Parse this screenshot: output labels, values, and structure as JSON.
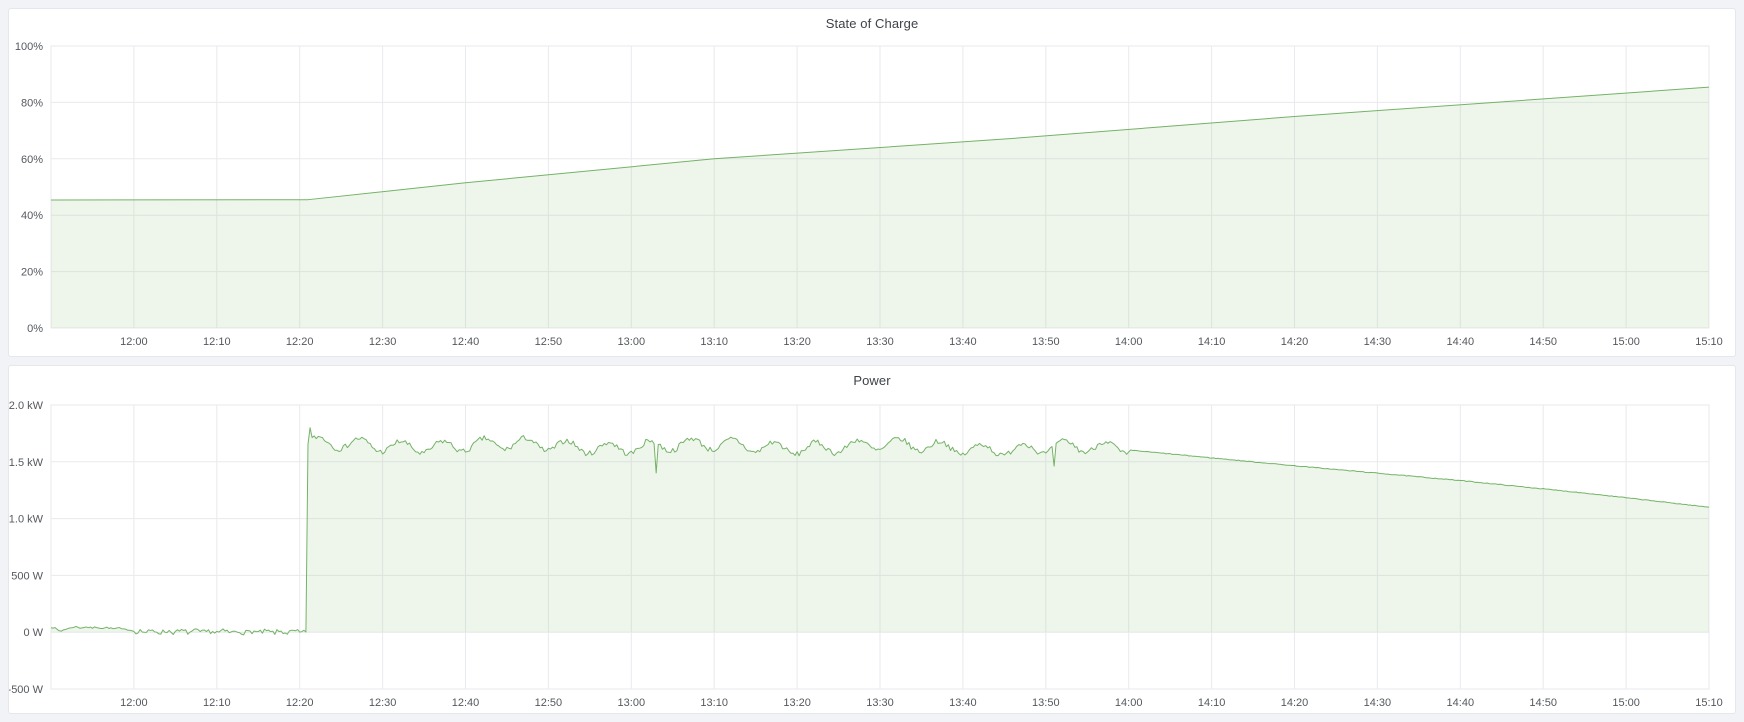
{
  "dashboard": {
    "kind": "time-series-dashboard"
  },
  "theme": {
    "page_bg": "#f1f3f7",
    "panel_bg": "#ffffff",
    "panel_border": "#e4e7ec",
    "grid_color": "#e9eaee",
    "tick_color": "#54585e",
    "title_color": "#3f4349",
    "series_color": "#74b266",
    "series_fill": "rgba(116,178,102,0.12)"
  },
  "chart_data": [
    {
      "type": "area",
      "title": "State of Charge",
      "x_start": "11:50",
      "x_end": "15:10",
      "x_minutes_total": 200,
      "x_tick_start_minute": 10,
      "x_tick_interval_minutes": 10,
      "x_tick_labels": [
        "12:00",
        "12:10",
        "12:20",
        "12:30",
        "12:40",
        "12:50",
        "13:00",
        "13:10",
        "13:20",
        "13:30",
        "13:40",
        "13:50",
        "14:00",
        "14:10",
        "14:20",
        "14:30",
        "14:40",
        "14:50",
        "15:00",
        "15:10"
      ],
      "ylim": [
        0,
        100
      ],
      "y_ticks": [
        {
          "value": 0,
          "label": "0%"
        },
        {
          "value": 20,
          "label": "20%"
        },
        {
          "value": 40,
          "label": "40%"
        },
        {
          "value": 60,
          "label": "60%"
        },
        {
          "value": 80,
          "label": "80%"
        },
        {
          "value": 100,
          "label": "100%"
        }
      ],
      "baseline": 0,
      "grid": true,
      "legend": false,
      "series": [
        {
          "name": "State of Charge (%)",
          "anchors_t_minutes_value": [
            [
              0,
              45.4
            ],
            [
              31,
              45.5
            ],
            [
              50,
              51.5
            ],
            [
              80,
              60
            ],
            [
              115,
              67
            ],
            [
              150,
              75
            ],
            [
              200,
              85.4
            ]
          ],
          "noise": 0
        }
      ]
    },
    {
      "type": "area",
      "title": "Power",
      "x_start": "11:50",
      "x_end": "15:10",
      "x_minutes_total": 200,
      "x_tick_start_minute": 10,
      "x_tick_interval_minutes": 10,
      "x_tick_labels": [
        "12:00",
        "12:10",
        "12:20",
        "12:30",
        "12:40",
        "12:50",
        "13:00",
        "13:10",
        "13:20",
        "13:30",
        "13:40",
        "13:50",
        "14:00",
        "14:10",
        "14:20",
        "14:30",
        "14:40",
        "14:50",
        "15:00",
        "15:10"
      ],
      "ylim": [
        -500,
        2000
      ],
      "y_ticks": [
        {
          "value": -500,
          "label": "-500 W"
        },
        {
          "value": 0,
          "label": "0 W"
        },
        {
          "value": 500,
          "label": "500 W"
        },
        {
          "value": 1000,
          "label": "1.0 kW"
        },
        {
          "value": 1500,
          "label": "1.5 kW"
        },
        {
          "value": 2000,
          "label": "2.0 kW"
        }
      ],
      "baseline": 0,
      "grid": true,
      "legend": false,
      "series": [
        {
          "name": "Power (W)",
          "sample_step_minutes": 0.25,
          "rng_seed": 7,
          "segments": [
            {
              "t0": 0,
              "t1": 10,
              "anchors": [
                [
                  0,
                  46
                ],
                [
                  1.2,
                  10
                ],
                [
                  2.5,
                  44
                ],
                [
                  6,
                  40
                ],
                [
                  8.5,
                  30
                ],
                [
                  10,
                  12
                ]
              ],
              "noise": 7,
              "wiggle_amp": 4,
              "wiggle_period": 1.3
            },
            {
              "t0": 10.25,
              "t1": 30.8,
              "anchors": [
                [
                  10.25,
                  6
                ],
                [
                  30.8,
                  0
                ]
              ],
              "noise": 22,
              "wiggle_amp": 6,
              "wiggle_period": 1.7
            },
            {
              "t0": 31,
              "t1": 130,
              "anchors": [
                [
                  31,
                  1650
                ],
                [
                  60,
                  1640
                ],
                [
                  100,
                  1635
                ],
                [
                  130,
                  1612
                ]
              ],
              "noise": 24,
              "wiggle_amp": 52,
              "wiggle_period": 5.0,
              "wiggle2_amp": 20,
              "wiggle2_period": 23,
              "spikes": [
                [
                  31.25,
                  1800
                ],
                [
                  73,
                  1402
                ],
                [
                  121,
                  1462
                ]
              ]
            },
            {
              "t0": 130.25,
              "t1": 200,
              "anchors": [
                [
                  130.25,
                  1602
                ],
                [
                  150,
                  1465
                ],
                [
                  170,
                  1335
                ],
                [
                  185,
                  1225
                ],
                [
                  200,
                  1100
                ]
              ],
              "noise": 3,
              "wiggle_amp": 0,
              "wiggle_period": 1
            }
          ]
        }
      ]
    }
  ]
}
